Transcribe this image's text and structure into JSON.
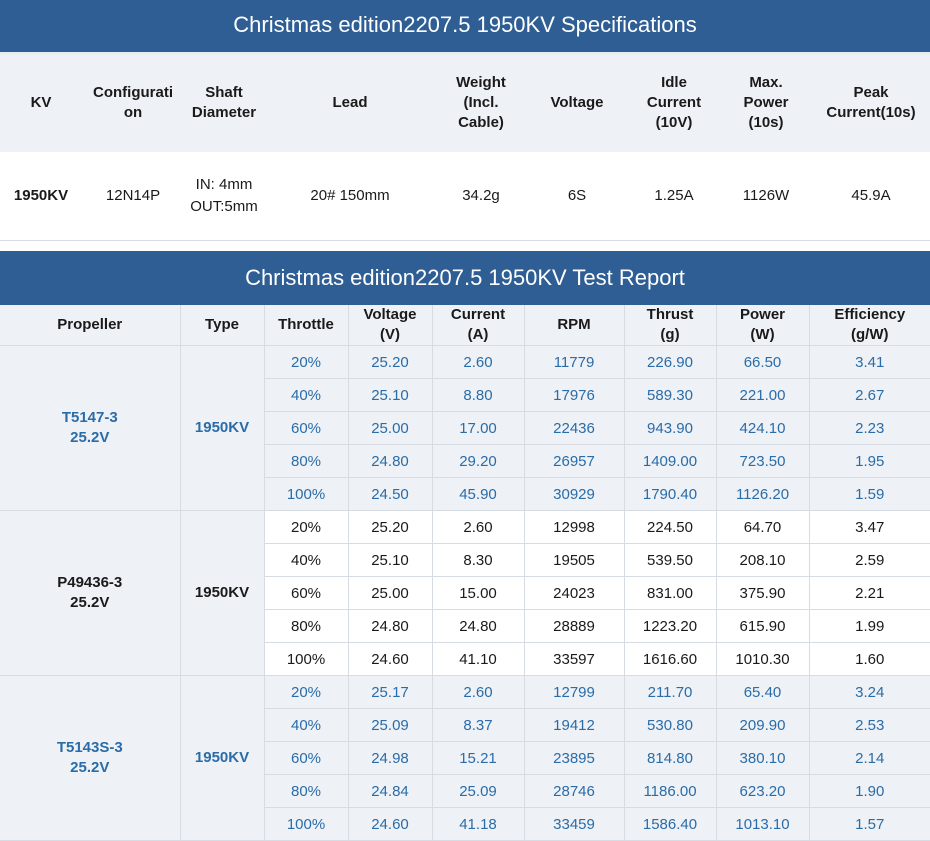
{
  "spec": {
    "title": "Christmas edition2207.5 1950KV Specifications",
    "headers": [
      [
        "KV"
      ],
      [
        "Configurati",
        "on"
      ],
      [
        "Shaft",
        "Diameter"
      ],
      [
        "Lead"
      ],
      [
        "Weight",
        "(Incl.",
        "Cable)"
      ],
      [
        "Voltage"
      ],
      [
        "Idle",
        "Current",
        "(10V)"
      ],
      [
        "Max.",
        "Power",
        "(10s)"
      ],
      [
        "Peak",
        "Current(10s)"
      ]
    ],
    "values": [
      [
        "1950KV"
      ],
      [
        "12N14P"
      ],
      [
        "IN: 4mm",
        "OUT:5mm"
      ],
      [
        "20# 150mm"
      ],
      [
        "34.2g"
      ],
      [
        "6S"
      ],
      [
        "1.25A"
      ],
      [
        "1126W"
      ],
      [
        "45.9A"
      ]
    ]
  },
  "report": {
    "title": "Christmas edition2207.5 1950KV Test Report",
    "headers": [
      [
        "Propeller"
      ],
      [
        "Type"
      ],
      [
        "Throttle"
      ],
      [
        "Voltage",
        "(V)"
      ],
      [
        "Current",
        "(A)"
      ],
      [
        "RPM"
      ],
      [
        "Thrust",
        "(g)"
      ],
      [
        "Power",
        "(W)"
      ],
      [
        "Efficiency",
        "(g/W)"
      ]
    ],
    "groups": [
      {
        "propeller": [
          "T5147-3",
          "25.2V"
        ],
        "type": "1950KV",
        "style": "a",
        "rows": [
          [
            "20%",
            "25.20",
            "2.60",
            "11779",
            "226.90",
            "66.50",
            "3.41"
          ],
          [
            "40%",
            "25.10",
            "8.80",
            "17976",
            "589.30",
            "221.00",
            "2.67"
          ],
          [
            "60%",
            "25.00",
            "17.00",
            "22436",
            "943.90",
            "424.10",
            "2.23"
          ],
          [
            "80%",
            "24.80",
            "29.20",
            "26957",
            "1409.00",
            "723.50",
            "1.95"
          ],
          [
            "100%",
            "24.50",
            "45.90",
            "30929",
            "1790.40",
            "1126.20",
            "1.59"
          ]
        ]
      },
      {
        "propeller": [
          "P49436-3",
          "25.2V"
        ],
        "type": "1950KV",
        "style": "b",
        "rows": [
          [
            "20%",
            "25.20",
            "2.60",
            "12998",
            "224.50",
            "64.70",
            "3.47"
          ],
          [
            "40%",
            "25.10",
            "8.30",
            "19505",
            "539.50",
            "208.10",
            "2.59"
          ],
          [
            "60%",
            "25.00",
            "15.00",
            "24023",
            "831.00",
            "375.90",
            "2.21"
          ],
          [
            "80%",
            "24.80",
            "24.80",
            "28889",
            "1223.20",
            "615.90",
            "1.99"
          ],
          [
            "100%",
            "24.60",
            "41.10",
            "33597",
            "1616.60",
            "1010.30",
            "1.60"
          ]
        ]
      },
      {
        "propeller": [
          "T5143S-3",
          "25.2V"
        ],
        "type": "1950KV",
        "style": "a",
        "rows": [
          [
            "20%",
            "25.17",
            "2.60",
            "12799",
            "211.70",
            "65.40",
            "3.24"
          ],
          [
            "40%",
            "25.09",
            "8.37",
            "19412",
            "530.80",
            "209.90",
            "2.53"
          ],
          [
            "60%",
            "24.98",
            "15.21",
            "23895",
            "814.80",
            "380.10",
            "2.14"
          ],
          [
            "80%",
            "24.84",
            "25.09",
            "28746",
            "1186.00",
            "623.20",
            "1.90"
          ],
          [
            "100%",
            "24.60",
            "41.18",
            "33459",
            "1586.40",
            "1013.10",
            "1.57"
          ]
        ]
      }
    ]
  },
  "colors": {
    "banner": "#2e5e94",
    "header_bg": "#eef1f5",
    "accent_text": "#2a6ca8",
    "grid": "#d7dce2"
  }
}
